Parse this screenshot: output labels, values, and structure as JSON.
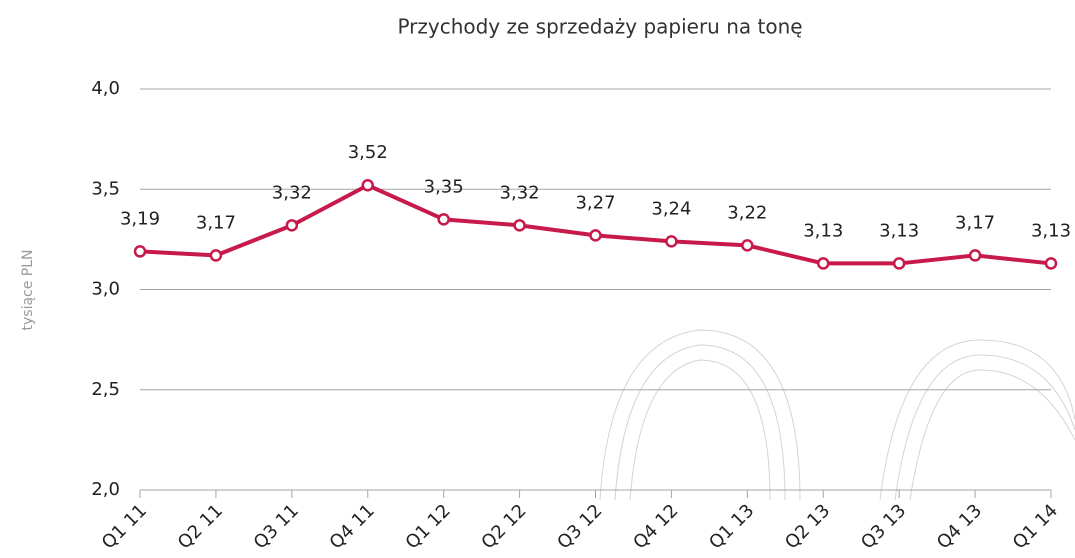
{
  "chart_data": {
    "type": "line",
    "title": "Przychody ze sprzedaży papieru na tonę",
    "y_label": "tysiące PLN",
    "categories": [
      "Q1 11",
      "Q2 11",
      "Q3 11",
      "Q4 11",
      "Q1 12",
      "Q2 12",
      "Q3 12",
      "Q4 12",
      "Q1 13",
      "Q2 13",
      "Q3 13",
      "Q4 13",
      "Q1 14"
    ],
    "series": [
      {
        "name": "Przychody",
        "color": "#c8194b",
        "values": [
          3.19,
          3.17,
          3.32,
          3.52,
          3.35,
          3.32,
          3.27,
          3.24,
          3.22,
          3.13,
          3.13,
          3.17,
          3.13
        ],
        "value_labels": [
          "3,19",
          "3,17",
          "3,32",
          "3,52",
          "3,35",
          "3,32",
          "3,27",
          "3,24",
          "3,22",
          "3,13",
          "3,13",
          "3,17",
          "3,13"
        ]
      }
    ],
    "ylim": [
      2,
      4
    ],
    "yticks": [
      {
        "value": 2,
        "label": "2,0"
      },
      {
        "value": 2.5,
        "label": "2,5"
      },
      {
        "value": 3,
        "label": "3,0"
      },
      {
        "value": 3.5,
        "label": "3,5"
      },
      {
        "value": 4,
        "label": "4,0"
      }
    ],
    "grid": true
  }
}
